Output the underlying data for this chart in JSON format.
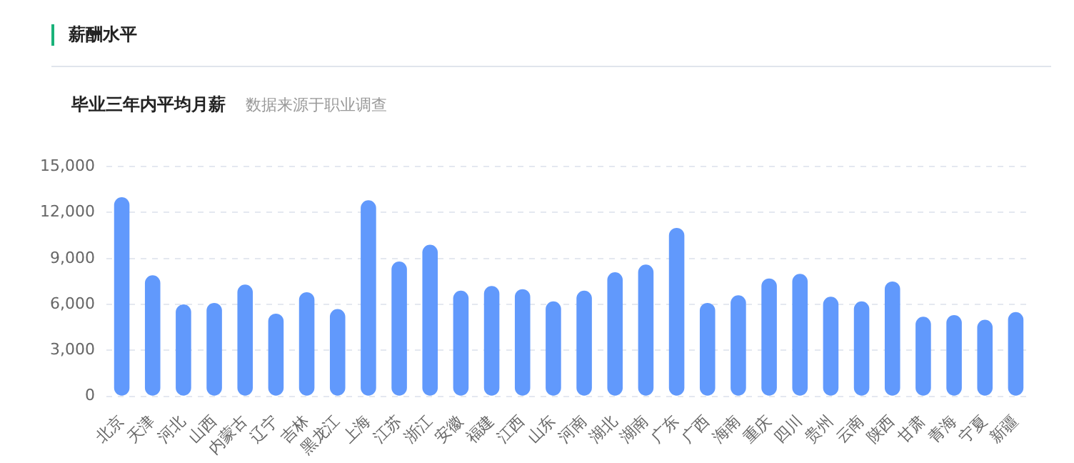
{
  "chart_data": {
    "type": "bar",
    "title": "薪酬水平",
    "subtitle": "毕业三年内平均月薪",
    "annotations": [
      "数据来源于职业调查"
    ],
    "categories": [
      "北京",
      "天津",
      "河北",
      "山西",
      "内蒙古",
      "辽宁",
      "吉林",
      "黑龙江",
      "上海",
      "江苏",
      "浙江",
      "安徽",
      "福建",
      "江西",
      "山东",
      "河南",
      "湖北",
      "湖南",
      "广东",
      "广西",
      "海南",
      "重庆",
      "四川",
      "贵州",
      "云南",
      "陕西",
      "甘肃",
      "青海",
      "宁夏",
      "新疆"
    ],
    "values": [
      13000,
      7900,
      6000,
      6100,
      7300,
      5400,
      6800,
      5700,
      12800,
      8800,
      9900,
      6900,
      7200,
      7000,
      6200,
      6900,
      8100,
      8600,
      11000,
      6100,
      6600,
      7700,
      8000,
      6500,
      6200,
      7500,
      5200,
      5300,
      5000,
      5500
    ],
    "color": "#6199fc",
    "ylim": [
      0,
      15000
    ],
    "yticks": [
      {
        "value": 0,
        "label": "0"
      },
      {
        "value": 3000,
        "label": "3,000"
      },
      {
        "value": 6000,
        "label": "6,000"
      },
      {
        "value": 9000,
        "label": "9,000"
      },
      {
        "value": 12000,
        "label": "12,000"
      },
      {
        "value": 15000,
        "label": "15,000"
      }
    ],
    "grid": "y"
  }
}
